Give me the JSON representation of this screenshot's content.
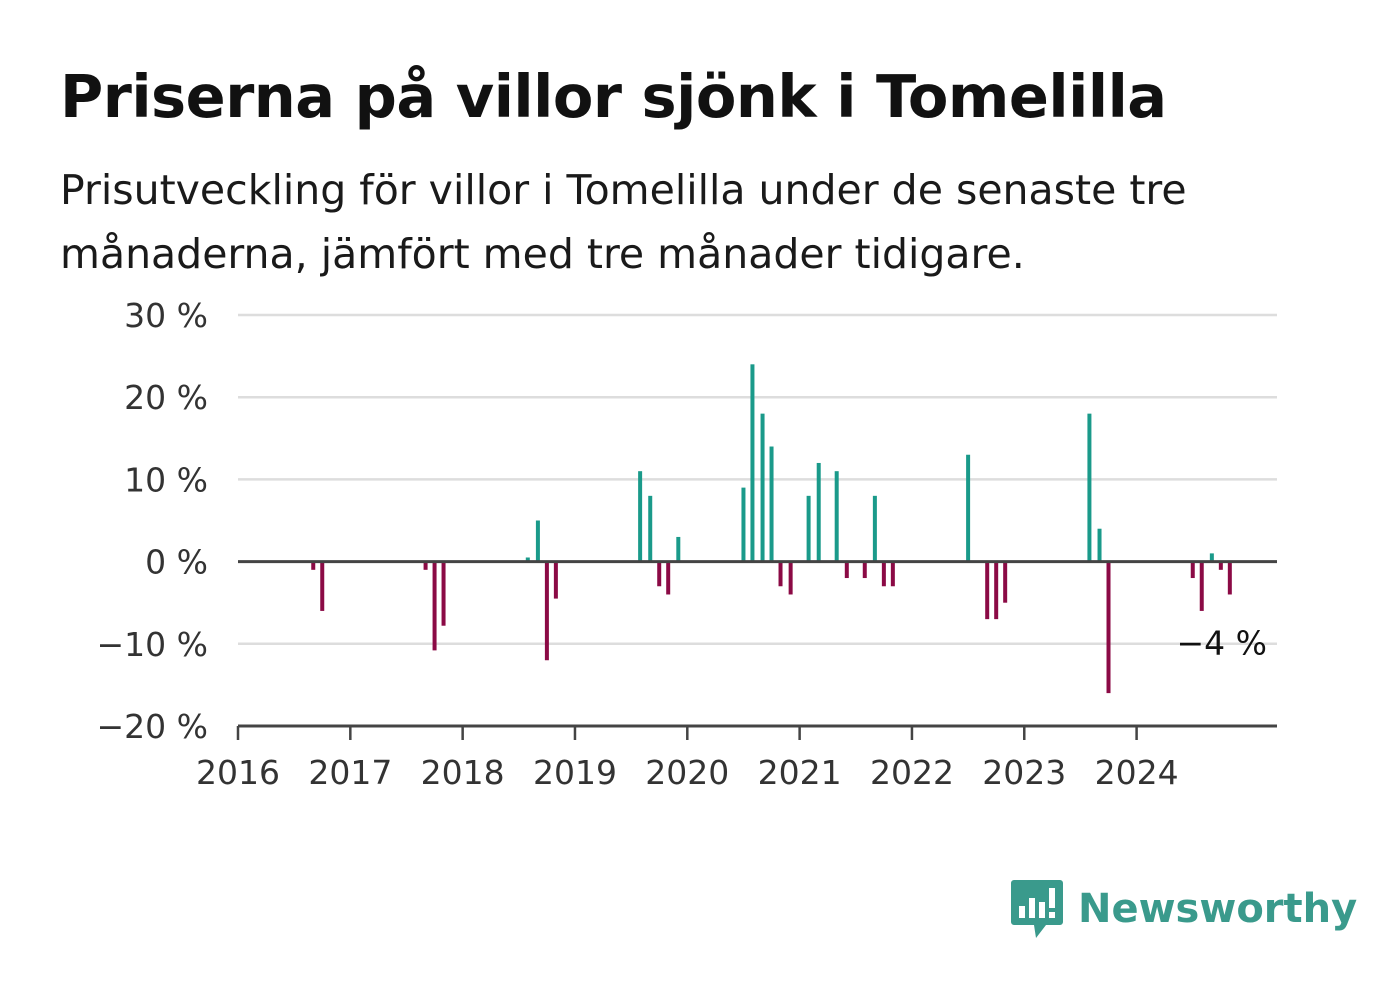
{
  "title": "Priserna på villor sjönk i Tomelilla",
  "subtitle": "Prisutveckling för villor i Tomelilla under de senaste tre månaderna, jämfört med tre månader tidigare.",
  "brand": {
    "name": "Newsworthy",
    "icon": "bar-chart-speech-bubble-icon",
    "color": "#3a9a8c"
  },
  "colors": {
    "positive": "#1a9a8a",
    "negative": "#8b0a45",
    "grid": "#dddddd",
    "axis": "#444444"
  },
  "chart_data": {
    "type": "bar",
    "title": "Priserna på villor sjönk i Tomelilla",
    "xlabel": "",
    "ylabel": "",
    "ylim": [
      -20,
      30
    ],
    "xlim": [
      2016.0,
      2025.25
    ],
    "y_ticks": [
      30,
      20,
      10,
      0,
      -10,
      -20
    ],
    "y_tick_labels": [
      "30 %",
      "20 %",
      "10 %",
      "0 %",
      "−10 %",
      "−20 %"
    ],
    "x_ticks": [
      2016,
      2017,
      2018,
      2019,
      2020,
      2021,
      2022,
      2023,
      2024
    ],
    "x_tick_labels": [
      "2016",
      "2017",
      "2018",
      "2019",
      "2020",
      "2021",
      "2022",
      "2023",
      "2024"
    ],
    "grid": true,
    "annotation": {
      "text": "−4 %",
      "x": 2024.96,
      "y": -4
    },
    "points": [
      {
        "x": 2016.67,
        "y": -1
      },
      {
        "x": 2016.75,
        "y": -6
      },
      {
        "x": 2017.67,
        "y": -1
      },
      {
        "x": 2017.75,
        "y": -10.8
      },
      {
        "x": 2017.83,
        "y": -7.8
      },
      {
        "x": 2018.58,
        "y": 0.5
      },
      {
        "x": 2018.67,
        "y": 5
      },
      {
        "x": 2018.75,
        "y": -12
      },
      {
        "x": 2018.83,
        "y": -4.5
      },
      {
        "x": 2019.58,
        "y": 11
      },
      {
        "x": 2019.67,
        "y": 8
      },
      {
        "x": 2019.75,
        "y": -3
      },
      {
        "x": 2019.83,
        "y": -4
      },
      {
        "x": 2019.92,
        "y": 3
      },
      {
        "x": 2020.5,
        "y": 9
      },
      {
        "x": 2020.58,
        "y": 24
      },
      {
        "x": 2020.67,
        "y": 18
      },
      {
        "x": 2020.75,
        "y": 14
      },
      {
        "x": 2020.83,
        "y": -3
      },
      {
        "x": 2020.92,
        "y": -4
      },
      {
        "x": 2021.08,
        "y": 8
      },
      {
        "x": 2021.17,
        "y": 12
      },
      {
        "x": 2021.33,
        "y": 11
      },
      {
        "x": 2021.42,
        "y": -2
      },
      {
        "x": 2021.58,
        "y": -2
      },
      {
        "x": 2021.67,
        "y": 8
      },
      {
        "x": 2021.75,
        "y": -3
      },
      {
        "x": 2021.83,
        "y": -3
      },
      {
        "x": 2022.5,
        "y": 13
      },
      {
        "x": 2022.67,
        "y": -7
      },
      {
        "x": 2022.75,
        "y": -7
      },
      {
        "x": 2022.83,
        "y": -5
      },
      {
        "x": 2023.58,
        "y": 18
      },
      {
        "x": 2023.67,
        "y": 4
      },
      {
        "x": 2023.75,
        "y": -16
      },
      {
        "x": 2024.5,
        "y": -2
      },
      {
        "x": 2024.58,
        "y": -6
      },
      {
        "x": 2024.67,
        "y": 1
      },
      {
        "x": 2024.75,
        "y": -1
      },
      {
        "x": 2024.83,
        "y": -4
      }
    ]
  }
}
